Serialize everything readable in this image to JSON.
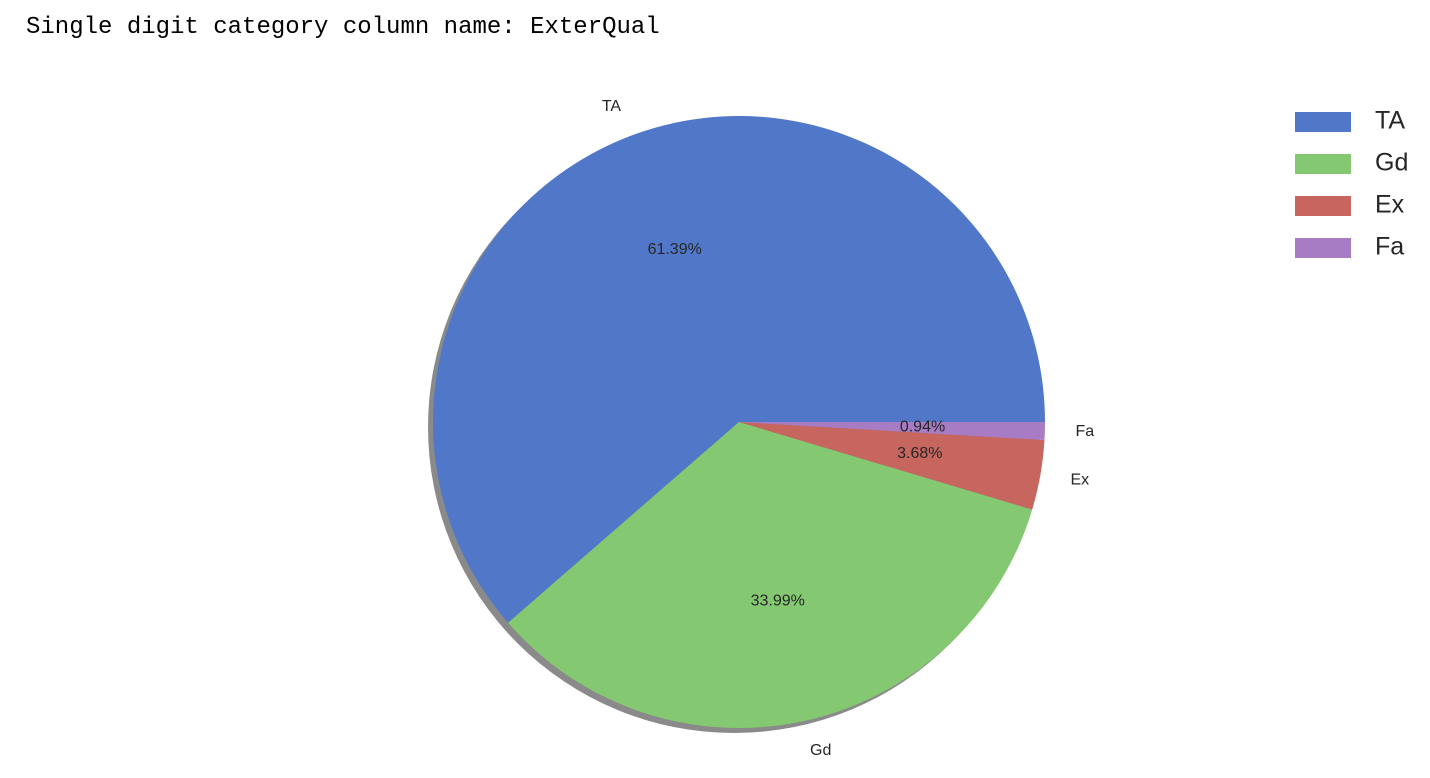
{
  "header": {
    "text": "Single digit category column name: ExterQual"
  },
  "chart_data": {
    "type": "pie",
    "categories": [
      "TA",
      "Gd",
      "Ex",
      "Fa"
    ],
    "values": [
      61.39,
      33.99,
      3.68,
      0.94
    ],
    "value_labels": [
      "61.39%",
      "33.99%",
      "3.68%",
      "0.94%"
    ],
    "colors": [
      "#5178c8",
      "#84c871",
      "#c7655f",
      "#a77cc4"
    ],
    "start_angle": "0 degrees (3 o'clock), counter-clockwise",
    "shadow": true,
    "legend": {
      "position": "top-right",
      "entries": [
        "TA",
        "Gd",
        "Ex",
        "Fa"
      ]
    }
  }
}
